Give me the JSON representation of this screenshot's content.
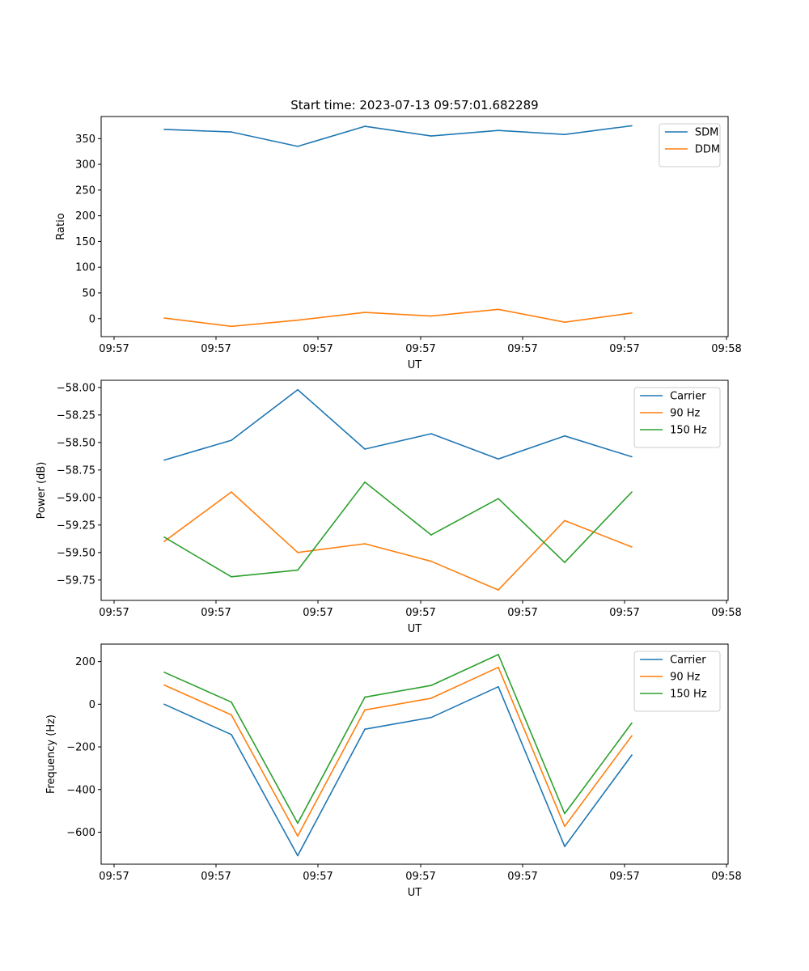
{
  "figure_title": "Start time: 2023-07-13 09:57:01.682289",
  "colors": {
    "blue": "#1f77b4",
    "orange": "#ff7f0e",
    "green": "#2ca02c"
  },
  "chart_data": [
    {
      "type": "line",
      "title": "Start time: 2023-07-13 09:57:01.682289",
      "xlabel": "UT",
      "ylabel": "Ratio",
      "x": [
        1,
        2,
        3,
        4,
        5,
        6,
        7,
        8
      ],
      "x_tick_labels": [
        "09:57",
        "09:57",
        "09:57",
        "09:57",
        "09:57",
        "09:57",
        "09:58"
      ],
      "y_ticks": [
        0,
        50,
        100,
        150,
        200,
        250,
        300,
        350
      ],
      "y_tick_labels": [
        "0",
        "50",
        "100",
        "150",
        "200",
        "250",
        "300",
        "350"
      ],
      "ylim": [
        -35,
        393
      ],
      "legend": "top-right",
      "series": [
        {
          "name": "SDM",
          "color": "#1f77b4",
          "values": [
            368,
            363,
            335,
            374,
            355,
            366,
            358,
            375
          ]
        },
        {
          "name": "DDM",
          "color": "#ff7f0e",
          "values": [
            1,
            -15,
            -3,
            12,
            5,
            18,
            -7,
            11
          ]
        }
      ]
    },
    {
      "type": "line",
      "title": "",
      "xlabel": "UT",
      "ylabel": "Power (dB)",
      "x": [
        1,
        2,
        3,
        4,
        5,
        6,
        7,
        8
      ],
      "x_tick_labels": [
        "09:57",
        "09:57",
        "09:57",
        "09:57",
        "09:57",
        "09:57",
        "09:58"
      ],
      "y_ticks": [
        -59.75,
        -59.5,
        -59.25,
        -59.0,
        -58.75,
        -58.5,
        -58.25,
        -58.0
      ],
      "y_tick_labels": [
        "−59.75",
        "−59.50",
        "−59.25",
        "−59.00",
        "−58.75",
        "−58.50",
        "−58.25",
        "−58.00"
      ],
      "ylim": [
        -59.935,
        -57.935
      ],
      "legend": "top-right",
      "series": [
        {
          "name": "Carrier",
          "color": "#1f77b4",
          "values": [
            -58.66,
            -58.48,
            -58.02,
            -58.56,
            -58.42,
            -58.65,
            -58.44,
            -58.63
          ]
        },
        {
          "name": "90 Hz",
          "color": "#ff7f0e",
          "values": [
            -59.4,
            -58.95,
            -59.5,
            -59.42,
            -59.58,
            -59.84,
            -59.21,
            -59.45
          ]
        },
        {
          "name": "150 Hz",
          "color": "#2ca02c",
          "values": [
            -59.36,
            -59.72,
            -59.66,
            -58.86,
            -59.34,
            -59.01,
            -59.59,
            -58.95
          ]
        }
      ]
    },
    {
      "type": "line",
      "title": "",
      "xlabel": "UT",
      "ylabel": "Frequency (Hz)",
      "x": [
        1,
        2,
        3,
        4,
        5,
        6,
        7,
        8
      ],
      "x_tick_labels": [
        "09:57",
        "09:57",
        "09:57",
        "09:57",
        "09:57",
        "09:57",
        "09:58"
      ],
      "y_ticks": [
        -600,
        -400,
        -200,
        0,
        200
      ],
      "y_tick_labels": [
        "−600",
        "−400",
        "−200",
        "0",
        "200"
      ],
      "ylim": [
        -750,
        282
      ],
      "legend": "top-right",
      "series": [
        {
          "name": "Carrier",
          "color": "#1f77b4",
          "values": [
            0,
            -142,
            -710,
            -117,
            -62,
            82,
            -667,
            -238
          ]
        },
        {
          "name": "90 Hz",
          "color": "#ff7f0e",
          "values": [
            90,
            -50,
            -618,
            -27,
            28,
            173,
            -573,
            -148
          ]
        },
        {
          "name": "150 Hz",
          "color": "#2ca02c",
          "values": [
            150,
            10,
            -558,
            33,
            88,
            233,
            -513,
            -88
          ]
        }
      ]
    }
  ]
}
